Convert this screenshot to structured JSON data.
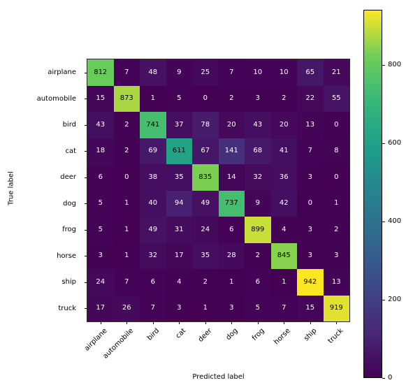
{
  "chart_data": {
    "type": "heatmap",
    "title": "",
    "xlabel": "Predicted label",
    "ylabel": "True label",
    "categories": [
      "airplane",
      "automobile",
      "bird",
      "cat",
      "deer",
      "dog",
      "frog",
      "horse",
      "ship",
      "truck"
    ],
    "matrix": [
      [
        812,
        7,
        48,
        9,
        25,
        7,
        10,
        10,
        65,
        21
      ],
      [
        15,
        873,
        1,
        5,
        0,
        2,
        3,
        2,
        22,
        55
      ],
      [
        43,
        2,
        741,
        37,
        78,
        20,
        43,
        20,
        13,
        0
      ],
      [
        18,
        2,
        69,
        611,
        67,
        141,
        68,
        41,
        7,
        8
      ],
      [
        6,
        0,
        38,
        35,
        835,
        14,
        32,
        36,
        3,
        0
      ],
      [
        5,
        1,
        40,
        94,
        49,
        737,
        9,
        42,
        0,
        1
      ],
      [
        5,
        1,
        49,
        31,
        24,
        6,
        899,
        4,
        3,
        2
      ],
      [
        3,
        1,
        32,
        17,
        35,
        28,
        2,
        845,
        3,
        3
      ],
      [
        24,
        7,
        6,
        4,
        2,
        1,
        6,
        1,
        942,
        13
      ],
      [
        17,
        26,
        7,
        3,
        1,
        3,
        5,
        7,
        15,
        919
      ]
    ],
    "vmin": 0,
    "vmax": 942,
    "colormap": "viridis",
    "colormap_stops": [
      "#440154",
      "#482878",
      "#3e4989",
      "#31688e",
      "#26828e",
      "#1f9e89",
      "#35b779",
      "#6ece58",
      "#fde725"
    ],
    "annotation_text_colors": {
      "dark_cells": "#ffffff",
      "light_cells": "#000000"
    },
    "colorbar": {
      "ticks": [
        0,
        200,
        400,
        600,
        800
      ]
    },
    "legend_position": "colorbar-right",
    "grid": false
  }
}
